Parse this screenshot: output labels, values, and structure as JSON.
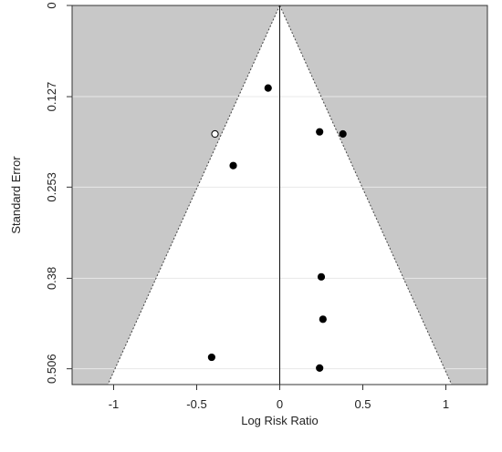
{
  "chart_data": {
    "type": "scatter",
    "title": "",
    "xlabel": "Log Risk Ratio",
    "ylabel": "Standard Error",
    "xlim": [
      -1.25,
      1.25
    ],
    "ylim": [
      0,
      0.528
    ],
    "y_axis_reversed": true,
    "x_ticks": [
      {
        "value": -1,
        "label": "-1"
      },
      {
        "value": -0.5,
        "label": "-0.5"
      },
      {
        "value": 0,
        "label": "0"
      },
      {
        "value": 0.5,
        "label": "0.5"
      },
      {
        "value": 1,
        "label": "1"
      }
    ],
    "y_ticks": [
      {
        "value": 0,
        "label": "0"
      },
      {
        "value": 0.127,
        "label": "0.127"
      },
      {
        "value": 0.253,
        "label": "0.253"
      },
      {
        "value": 0.38,
        "label": "0.38"
      },
      {
        "value": 0.506,
        "label": "0.506"
      }
    ],
    "funnel": {
      "center": 0,
      "z": 1.96,
      "inside_color": "#ffffff",
      "outside_color": "#c8c8c8",
      "gridline_color": "#e8e8e8"
    },
    "studies": [
      {
        "x": -0.07,
        "y": 0.115,
        "filled": true
      },
      {
        "x": 0.24,
        "y": 0.176,
        "filled": true
      },
      {
        "x": 0.38,
        "y": 0.179,
        "filled": true
      },
      {
        "x": -0.28,
        "y": 0.223,
        "filled": true
      },
      {
        "x": 0.25,
        "y": 0.378,
        "filled": true
      },
      {
        "x": 0.26,
        "y": 0.437,
        "filled": true
      },
      {
        "x": -0.41,
        "y": 0.49,
        "filled": true
      },
      {
        "x": 0.24,
        "y": 0.505,
        "filled": true
      },
      {
        "x": -0.39,
        "y": 0.179,
        "filled": false
      }
    ],
    "grid": true,
    "legend": "none"
  }
}
